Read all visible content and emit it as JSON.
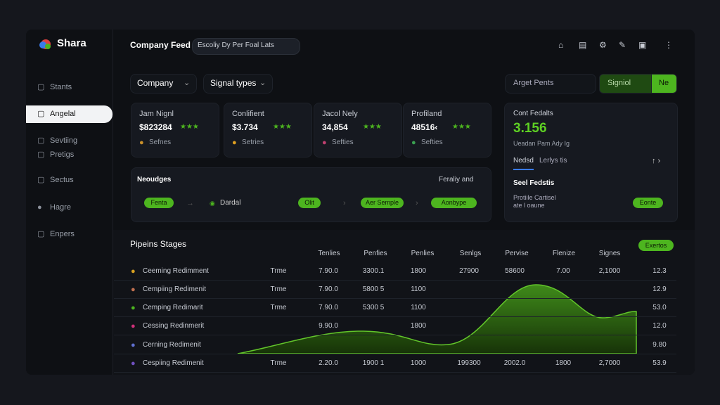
{
  "sidebar": {
    "brand": "Shara",
    "items": [
      "Stants",
      "Angelal",
      "Sevtiing",
      "Pretigs",
      "Sectus",
      "Hagre",
      "Enpers"
    ]
  },
  "header": {
    "title": "Company Feed",
    "badge": "Escoliy Dy Per Foal Lats"
  },
  "filters": {
    "company": "Company",
    "signal_types": "Signal types",
    "search": "Arget Pents",
    "signal_button": "Signiol",
    "go_button": "Ne"
  },
  "cards": [
    {
      "label": "Jam Nignl",
      "value": "$823284",
      "foot": "Sefnes"
    },
    {
      "label": "Conlifient",
      "value": "$3.734",
      "foot": "Setries"
    },
    {
      "label": "Jacol Nely",
      "value": "34,854",
      "foot": "Sefties"
    },
    {
      "label": "Profiland",
      "value": "48516‹",
      "foot": "Sefties"
    }
  ],
  "side_panel": {
    "title": "Cont Fedalts",
    "value": "3.156",
    "sub": "Ueadan Pam Ady Ig",
    "tabs": [
      "Nedsd",
      "Lerlys tis"
    ],
    "section": "Seel Fedstis",
    "line1": "Protiile Cartisel",
    "line2": "ate l oaune",
    "button": "Eonte"
  },
  "workflow": {
    "title": "Neoudges",
    "right": "Feraliy and",
    "steps": [
      "Fenta",
      "Dardal",
      "Olit",
      "Aer Semple",
      "Aonbype"
    ]
  },
  "pipeline": {
    "title": "Pipeins Stages",
    "button": "Exertos",
    "columns": [
      "Tenlies",
      "Penfies",
      "Penlies",
      "Senlgs",
      "Pervise",
      "Flenize",
      "Signes"
    ],
    "rows": [
      {
        "name": "Ceeming Redimment",
        "cells": [
          "Trme",
          "7.90.0",
          "3300.1",
          "1800",
          "27900",
          "58600",
          "7.00",
          "2,1000",
          "12.3"
        ]
      },
      {
        "name": "Cempiing Redimenit",
        "cells": [
          "Trme",
          "7.90.0",
          "5800 5",
          "1100",
          null,
          null,
          null,
          null,
          "12.9"
        ]
      },
      {
        "name": "Cemping Redimarit",
        "cells": [
          "Trme",
          "7.90.0",
          "5300 5",
          "1100",
          null,
          null,
          null,
          null,
          "53.0"
        ]
      },
      {
        "name": "Cessing Redinmerit",
        "cells": [
          null,
          "9.90.0",
          null,
          "1800",
          null,
          null,
          null,
          null,
          "12.0"
        ]
      },
      {
        "name": "Cerning Redimenit",
        "cells": [
          null,
          null,
          null,
          null,
          null,
          null,
          null,
          null,
          "9.80"
        ]
      },
      {
        "name": "Cespiing Redimenit",
        "cells": [
          "Trme",
          "2.20.0",
          "1900 1",
          "1000",
          "199300",
          "2002.0",
          "1800",
          "2,7000",
          "53.9"
        ]
      }
    ]
  }
}
